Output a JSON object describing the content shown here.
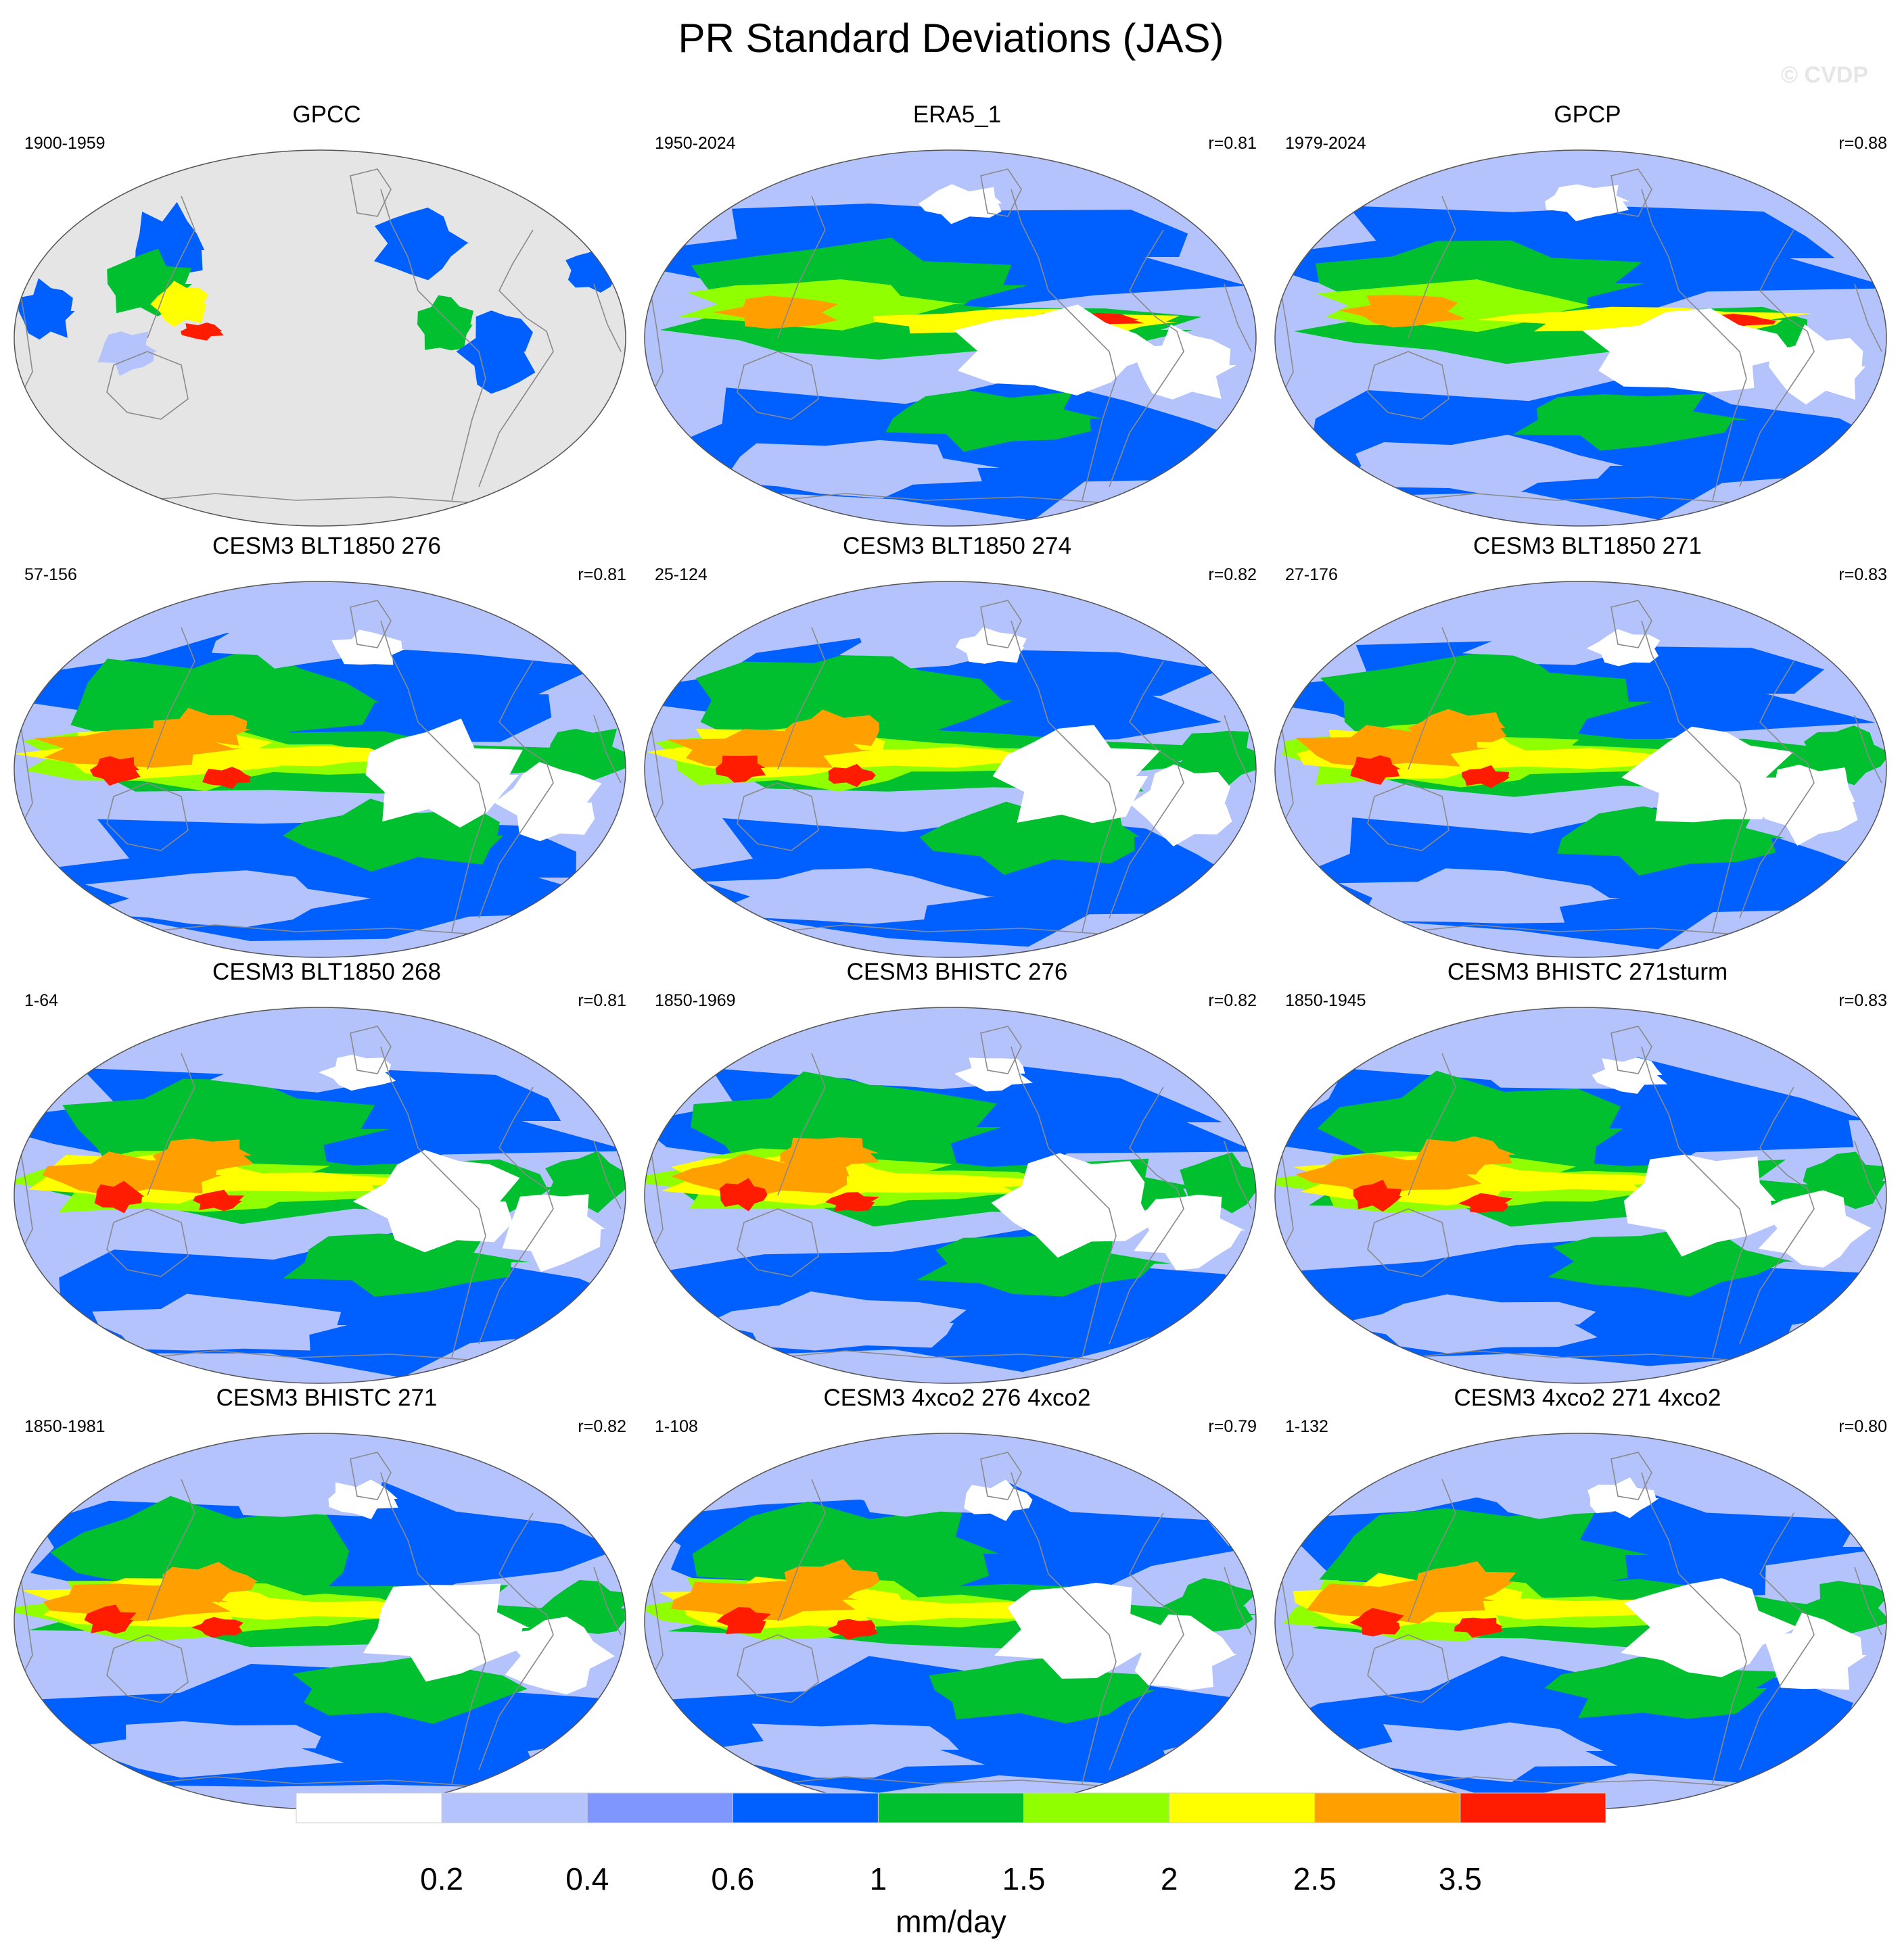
{
  "title": "PR Standard Deviations (JAS)",
  "watermark": "© CVDP",
  "palette": {
    "white": "#ffffff",
    "pale": "#b4c3fb",
    "light": "#8096ff",
    "blue": "#0060ff",
    "green": "#00c030",
    "lime": "#90ff00",
    "yellow": "#ffff00",
    "orange": "#ffa000",
    "red": "#ff1c00",
    "land_mask": "#e5e5e5",
    "coast": "#8a8a8a"
  },
  "panels": [
    {
      "title": "GPCC",
      "years": "1900-1959",
      "corr": "",
      "masked": true
    },
    {
      "title": "ERA5_1",
      "years": "1950-2024",
      "corr": "r=0.81"
    },
    {
      "title": "GPCP",
      "years": "1979-2024",
      "corr": "r=0.88"
    },
    {
      "title": "CESM3 BLT1850 276",
      "years": "57-156",
      "corr": "r=0.81"
    },
    {
      "title": "CESM3 BLT1850 274",
      "years": "25-124",
      "corr": "r=0.82"
    },
    {
      "title": "CESM3 BLT1850 271",
      "years": "27-176",
      "corr": "r=0.83"
    },
    {
      "title": "CESM3 BLT1850 268",
      "years": "1-64",
      "corr": "r=0.81"
    },
    {
      "title": "CESM3 BHISTC 276",
      "years": "1850-1969",
      "corr": "r=0.82"
    },
    {
      "title": "CESM3 BHISTC 271sturm",
      "years": "1850-1945",
      "corr": "r=0.83"
    },
    {
      "title": "CESM3 BHISTC 271",
      "years": "1850-1981",
      "corr": "r=0.82"
    },
    {
      "title": "CESM3 4xco2 276 4xco2",
      "years": "1-108",
      "corr": "r=0.79"
    },
    {
      "title": "CESM3 4xco2 271 4xco2",
      "years": "1-132",
      "corr": "r=0.80"
    }
  ],
  "colorbar": {
    "levels": [
      "0.2",
      "0.4",
      "0.6",
      "1",
      "1.5",
      "2",
      "2.5",
      "3.5"
    ],
    "colors": [
      "#ffffff",
      "#b4c3fb",
      "#8096ff",
      "#0060ff",
      "#00c030",
      "#90ff00",
      "#ffff00",
      "#ffa000",
      "#ff1c00"
    ],
    "units": "mm/day"
  }
}
